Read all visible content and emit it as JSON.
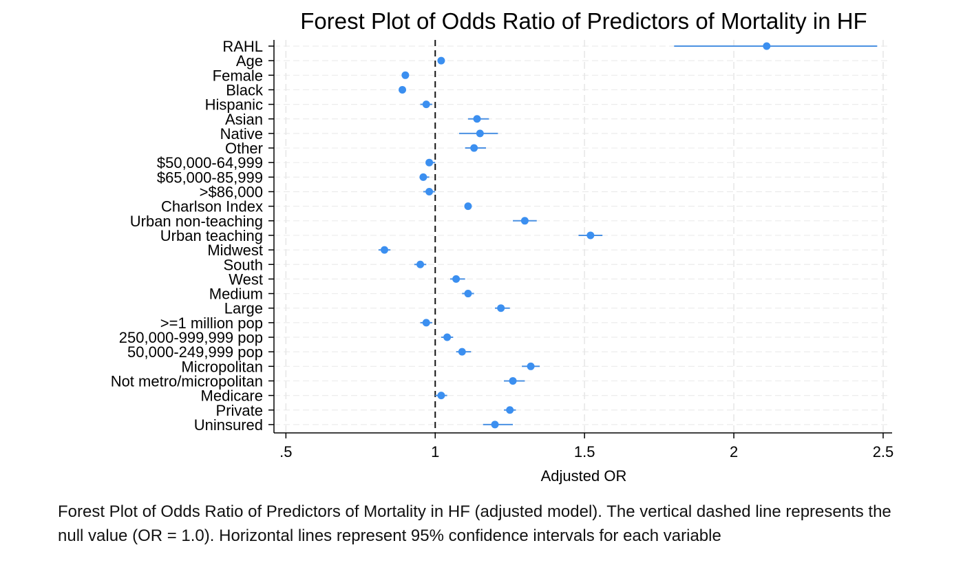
{
  "chart_data": {
    "type": "forest",
    "title": "Forest Plot of Odds Ratio of Predictors of Mortality in HF",
    "xlabel": "Adjusted OR",
    "xlim": [
      0.46,
      2.53
    ],
    "xticks": [
      0.5,
      1,
      1.5,
      2,
      2.5
    ],
    "xtick_labels": [
      ".5",
      "1",
      "1.5",
      "2",
      "2.5"
    ],
    "reference_line": 1.0,
    "marker_color": "#3b8ff0",
    "line_color": "#4a90e2",
    "rows": [
      {
        "label": "RAHL",
        "or": 2.11,
        "lo": 1.8,
        "hi": 2.48
      },
      {
        "label": "Age",
        "or": 1.02,
        "lo": 1.015,
        "hi": 1.025
      },
      {
        "label": "Female",
        "or": 0.9,
        "lo": 0.89,
        "hi": 0.91
      },
      {
        "label": "Black",
        "or": 0.89,
        "lo": 0.88,
        "hi": 0.9
      },
      {
        "label": "Hispanic",
        "or": 0.97,
        "lo": 0.95,
        "hi": 0.99
      },
      {
        "label": "Asian",
        "or": 1.14,
        "lo": 1.11,
        "hi": 1.18
      },
      {
        "label": "Native",
        "or": 1.15,
        "lo": 1.08,
        "hi": 1.21
      },
      {
        "label": "Other",
        "or": 1.13,
        "lo": 1.1,
        "hi": 1.17
      },
      {
        "label": "$50,000-64,999",
        "or": 0.98,
        "lo": 0.97,
        "hi": 1.0
      },
      {
        "label": "$65,000-85,999",
        "or": 0.96,
        "lo": 0.95,
        "hi": 0.98
      },
      {
        "label": ">$86,000",
        "or": 0.98,
        "lo": 0.96,
        "hi": 1.0
      },
      {
        "label": "Charlson Index",
        "or": 1.11,
        "lo": 1.105,
        "hi": 1.115
      },
      {
        "label": "Urban non-teaching",
        "or": 1.3,
        "lo": 1.26,
        "hi": 1.34
      },
      {
        "label": "Urban teaching",
        "or": 1.52,
        "lo": 1.48,
        "hi": 1.56
      },
      {
        "label": "Midwest",
        "or": 0.83,
        "lo": 0.81,
        "hi": 0.85
      },
      {
        "label": "South",
        "or": 0.95,
        "lo": 0.93,
        "hi": 0.97
      },
      {
        "label": "West",
        "or": 1.07,
        "lo": 1.05,
        "hi": 1.1
      },
      {
        "label": "Medium",
        "or": 1.11,
        "lo": 1.09,
        "hi": 1.13
      },
      {
        "label": "Large",
        "or": 1.22,
        "lo": 1.2,
        "hi": 1.25
      },
      {
        "label": ">=1 million pop",
        "or": 0.97,
        "lo": 0.95,
        "hi": 0.99
      },
      {
        "label": "250,000-999,999 pop",
        "or": 1.04,
        "lo": 1.02,
        "hi": 1.06
      },
      {
        "label": "50,000-249,999 pop",
        "or": 1.09,
        "lo": 1.07,
        "hi": 1.12
      },
      {
        "label": "Micropolitan",
        "or": 1.32,
        "lo": 1.29,
        "hi": 1.35
      },
      {
        "label": "Not metro/micropolitan",
        "or": 1.26,
        "lo": 1.23,
        "hi": 1.3
      },
      {
        "label": "Medicare",
        "or": 1.02,
        "lo": 1.0,
        "hi": 1.04
      },
      {
        "label": "Private",
        "or": 1.25,
        "lo": 1.23,
        "hi": 1.27
      },
      {
        "label": "Uninsured",
        "or": 1.2,
        "lo": 1.16,
        "hi": 1.26
      }
    ]
  },
  "caption": "Forest Plot of Odds Ratio of Predictors of Mortality in HF (adjusted model). The vertical dashed line represents the null value (OR = 1.0). Horizontal lines represent 95% confidence intervals for each variable"
}
